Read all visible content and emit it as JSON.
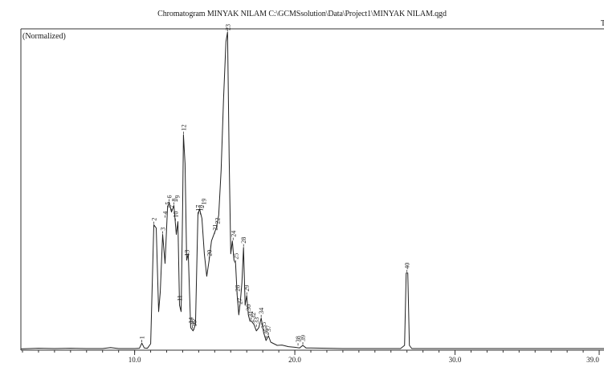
{
  "title": "Chromatogram MINYAK NILAM C:\\GCMSsolution\\Data\\Project1\\MINYAK NILAM.qgd",
  "corner_label": "T",
  "chart_data": {
    "type": "line",
    "title": "Chromatogram MINYAK NILAM C:\\GCMSsolution\\Data\\Project1\\MINYAK NILAM.qgd",
    "ylabel": "(Normalized)",
    "xlabel": "",
    "xlim": [
      2.9,
      39.3
    ],
    "ylim": [
      0,
      100
    ],
    "x_ticks": [
      10.0,
      20.0,
      30.0,
      39.0
    ],
    "x_tick_labels": [
      "10.0",
      "20.0",
      "30.0",
      "39.0"
    ],
    "grid": false,
    "series": [
      {
        "x": [
          2.9,
          4.0,
          5.0,
          6.0,
          7.0,
          8.0,
          8.5,
          9.0,
          10.0,
          10.3,
          10.45,
          10.6,
          10.8,
          11.0,
          11.2,
          11.35,
          11.5,
          11.6,
          11.75,
          11.9,
          12.05,
          12.15,
          12.3,
          12.45,
          12.6,
          12.7,
          12.8,
          12.9,
          13.0,
          13.05,
          13.15,
          13.25,
          13.35,
          13.5,
          13.65,
          13.8,
          13.95,
          14.05,
          14.2,
          14.35,
          14.5,
          14.65,
          14.8,
          14.95,
          15.1,
          15.25,
          15.4,
          15.55,
          15.7,
          15.8,
          15.9,
          16.0,
          16.1,
          16.2,
          16.3,
          16.4,
          16.5,
          16.6,
          16.7,
          16.8,
          16.9,
          17.0,
          17.1,
          17.2,
          17.3,
          17.45,
          17.6,
          17.75,
          17.9,
          18.05,
          18.2,
          18.35,
          18.5,
          18.7,
          18.9,
          19.2,
          19.6,
          20.0,
          20.3,
          20.5,
          20.7,
          21.0,
          22.0,
          23.0,
          24.0,
          25.0,
          26.0,
          26.6,
          26.85,
          26.95,
          27.05,
          27.15,
          27.3,
          27.6,
          28.0,
          29.0,
          30.0,
          32.0,
          34.0,
          36.0,
          38.0,
          39.3
        ],
        "y": [
          0.4,
          0.6,
          0.5,
          0.6,
          0.5,
          0.5,
          0.8,
          0.5,
          0.5,
          0.6,
          2.2,
          0.7,
          0.6,
          2.0,
          39.0,
          38.0,
          12.0,
          18.0,
          36.0,
          27.0,
          44.0,
          46.0,
          43.0,
          45.0,
          36.0,
          40.0,
          14.0,
          12.0,
          45.0,
          67.0,
          58.0,
          28.0,
          30.0,
          7.0,
          6.0,
          8.0,
          42.0,
          44.0,
          41.0,
          30.0,
          23.0,
          28.0,
          34.0,
          36.0,
          38.0,
          42.0,
          56.0,
          78.0,
          96.0,
          99.0,
          60.0,
          30.0,
          34.0,
          28.0,
          27.0,
          17.0,
          11.0,
          15.0,
          21.0,
          32.0,
          14.0,
          17.0,
          11.0,
          9.0,
          9.0,
          8.0,
          6.0,
          7.0,
          10.0,
          5.5,
          3.0,
          4.5,
          2.5,
          2.0,
          1.5,
          1.6,
          1.1,
          0.9,
          0.7,
          1.5,
          0.7,
          0.7,
          0.6,
          0.5,
          0.5,
          0.5,
          0.5,
          0.5,
          1.5,
          24.0,
          24.0,
          1.5,
          0.5,
          0.5,
          0.5,
          0.5,
          0.5,
          0.5,
          0.5,
          0.5,
          0.5,
          0.5
        ]
      }
    ],
    "peak_labels": [
      {
        "label": "1",
        "x": 10.45,
        "y": 2.2
      },
      {
        "label": "2",
        "x": 11.2,
        "y": 39
      },
      {
        "label": "3",
        "x": 11.75,
        "y": 36
      },
      {
        "label": "4",
        "x": 11.9,
        "y": 41
      },
      {
        "label": "5",
        "x": 12.05,
        "y": 44
      },
      {
        "label": "6",
        "x": 12.15,
        "y": 46
      },
      {
        "label": "7",
        "x": 12.3,
        "y": 43
      },
      {
        "label": "8",
        "x": 12.45,
        "y": 45
      },
      {
        "label": "9",
        "x": 12.65,
        "y": 46
      },
      {
        "label": "10",
        "x": 12.55,
        "y": 40
      },
      {
        "label": "11",
        "x": 12.8,
        "y": 14
      },
      {
        "label": "12",
        "x": 13.05,
        "y": 67
      },
      {
        "label": "13",
        "x": 13.25,
        "y": 28
      },
      {
        "label": "14",
        "x": 13.5,
        "y": 7
      },
      {
        "label": "15",
        "x": 13.6,
        "y": 6.5
      },
      {
        "label": "16",
        "x": 13.7,
        "y": 6
      },
      {
        "label": "17",
        "x": 13.95,
        "y": 42
      },
      {
        "label": "18",
        "x": 14.1,
        "y": 42
      },
      {
        "label": "19",
        "x": 14.3,
        "y": 44
      },
      {
        "label": "20",
        "x": 14.65,
        "y": 28
      },
      {
        "label": "21",
        "x": 15.0,
        "y": 36
      },
      {
        "label": "22",
        "x": 15.15,
        "y": 38
      },
      {
        "label": "23",
        "x": 15.8,
        "y": 99
      },
      {
        "label": "24",
        "x": 16.15,
        "y": 34
      },
      {
        "label": "25",
        "x": 16.3,
        "y": 27
      },
      {
        "label": "26",
        "x": 16.4,
        "y": 17
      },
      {
        "label": "27",
        "x": 16.55,
        "y": 13
      },
      {
        "label": "28",
        "x": 16.8,
        "y": 32
      },
      {
        "label": "29",
        "x": 17.0,
        "y": 17
      },
      {
        "label": "30",
        "x": 17.1,
        "y": 11
      },
      {
        "label": "31",
        "x": 17.25,
        "y": 9
      },
      {
        "label": "32",
        "x": 17.4,
        "y": 8.5
      },
      {
        "label": "33",
        "x": 17.6,
        "y": 7
      },
      {
        "label": "34",
        "x": 17.9,
        "y": 10
      },
      {
        "label": "35",
        "x": 18.05,
        "y": 5.5
      },
      {
        "label": "36",
        "x": 18.2,
        "y": 3.5
      },
      {
        "label": "37",
        "x": 18.35,
        "y": 4.5
      },
      {
        "label": "38",
        "x": 20.2,
        "y": 1.2
      },
      {
        "label": "39",
        "x": 20.5,
        "y": 1.5
      },
      {
        "label": "40",
        "x": 27.0,
        "y": 24
      }
    ]
  }
}
